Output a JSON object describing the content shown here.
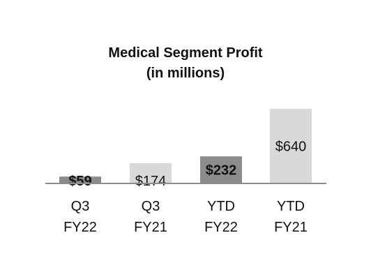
{
  "chart_data": {
    "type": "bar",
    "title_lines": [
      "Medical Segment Profit",
      "(in millions)"
    ],
    "categories": [
      [
        "Q3",
        "FY22"
      ],
      [
        "Q3",
        "FY21"
      ],
      [
        "YTD",
        "FY22"
      ],
      [
        "YTD",
        "FY21"
      ]
    ],
    "values": [
      59,
      174,
      232,
      640
    ],
    "value_labels": [
      "$59",
      "$174",
      "$232",
      "$640"
    ],
    "bold_labels": [
      true,
      false,
      true,
      false
    ],
    "bar_colors": [
      "#8c8c8c",
      "#d9d9d9",
      "#8c8c8c",
      "#d9d9d9"
    ],
    "axis_color": "#8c8c8c",
    "ylim": [
      0,
      640
    ],
    "grid": false
  }
}
